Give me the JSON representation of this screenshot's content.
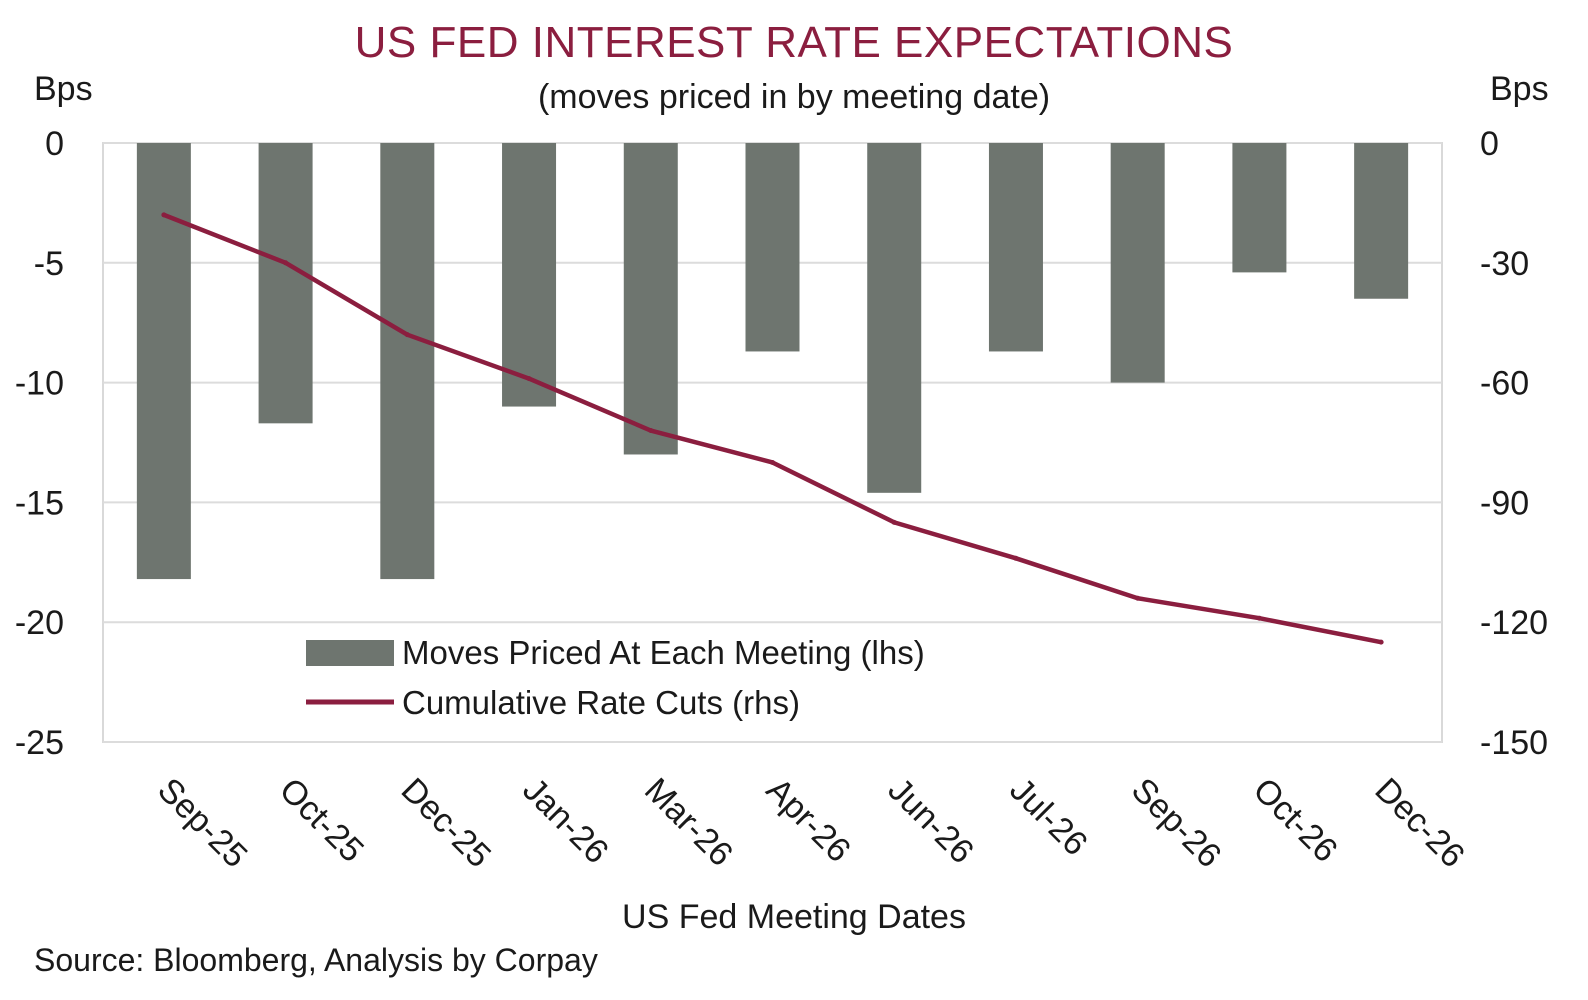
{
  "chart_data": {
    "type": "bar",
    "title": "US FED INTEREST RATE EXPECTATIONS",
    "subtitle": "(moves priced in by meeting date)",
    "ylabel_left": "Bps",
    "ylabel_right": "Bps",
    "xlabel": "US Fed Meeting Dates",
    "source": "Source: Bloomberg, Analysis by Corpay",
    "categories": [
      "Sep-25",
      "Oct-25",
      "Dec-25",
      "Jan-26",
      "Mar-26",
      "Apr-26",
      "Jun-26",
      "Jul-26",
      "Sep-26",
      "Oct-26",
      "Dec-26"
    ],
    "series": [
      {
        "name": "Moves Priced At Each Meeting (lhs)",
        "type": "bar",
        "axis": "left",
        "color": "#6e756f",
        "values": [
          -18.2,
          -11.7,
          -18.2,
          -11.0,
          -13.0,
          -8.7,
          -14.6,
          -8.7,
          -10.0,
          -5.4,
          -6.5
        ]
      },
      {
        "name": "Cumulative Rate Cuts (rhs)",
        "type": "line",
        "axis": "right",
        "color": "#8b1e3f",
        "values": [
          -18,
          -30,
          -48,
          -59,
          -72,
          -80,
          -95,
          -104,
          -114,
          -119,
          -125
        ]
      }
    ],
    "ylim_left": [
      -25,
      0
    ],
    "yticks_left": [
      "0",
      "-5",
      "-10",
      "-15",
      "-20",
      "-25"
    ],
    "ylim_right": [
      -150,
      0
    ],
    "yticks_right": [
      "0",
      "-30",
      "-60",
      "-90",
      "-120",
      "-150"
    ],
    "grid": true,
    "legend_position": "bottom-left"
  }
}
